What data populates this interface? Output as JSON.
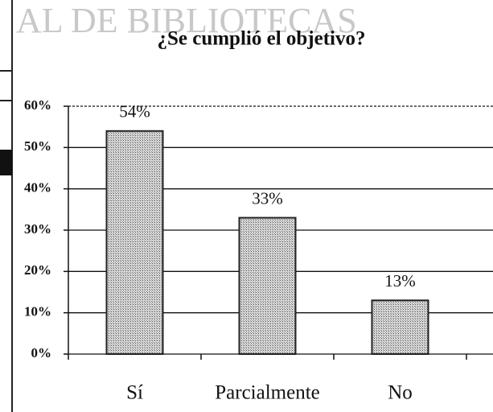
{
  "chart_data": {
    "type": "bar",
    "watermark": "AL DE BIBLIOTECAS",
    "title": "¿Se cumplió el objetivo?",
    "categories": [
      "Sí",
      "Parcialmente",
      "No"
    ],
    "values": [
      54,
      33,
      13
    ],
    "value_labels": [
      "54%",
      "33%",
      "13%"
    ],
    "color": "#c4c4c4",
    "ylim": [
      0,
      60
    ],
    "yticks": [
      {
        "value": 0,
        "label": "0%"
      },
      {
        "value": 10,
        "label": "10%"
      },
      {
        "value": 20,
        "label": "20%"
      },
      {
        "value": 30,
        "label": "30%"
      },
      {
        "value": 40,
        "label": "40%"
      },
      {
        "value": 50,
        "label": "50%"
      },
      {
        "value": 60,
        "label": "60%"
      }
    ],
    "grid": true
  }
}
